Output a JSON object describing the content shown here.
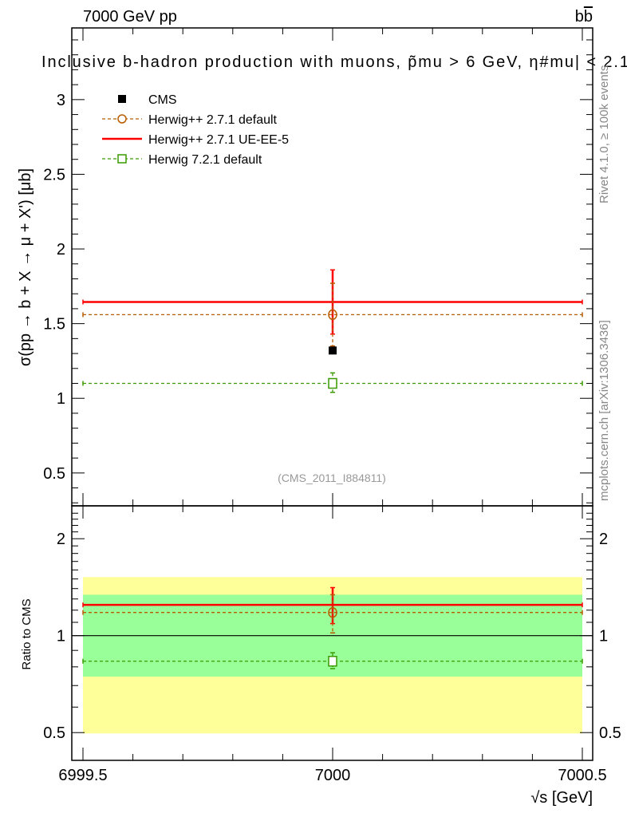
{
  "header": {
    "left": "7000 GeV pp",
    "right": "b",
    "right_bar": "b"
  },
  "side_labels": {
    "rivet": "Rivet 4.1.0, ≥ 100k events",
    "mcplots": "mcplots.cern.ch [arXiv:1306.3436]"
  },
  "chart_data": [
    {
      "type": "scatter",
      "title": "Inclusive b-hadron production with muons, p̃mu > 6 GeV, |η#mu| < 2.1",
      "title_text": "Inclusive b-hadron production with muons, p̃mu > 6 GeV, η#mu| < 2.1",
      "ylabel": "σ(pp → b + X → μ + X') [μb]",
      "ylim": [
        0.28,
        3.48
      ],
      "xlim": [
        6999.5,
        7000.5
      ],
      "yticks": [
        "0.5",
        "1",
        "1.5",
        "2",
        "2.5",
        "3"
      ],
      "yticks_values": [
        0.5,
        1,
        1.5,
        2,
        2.5,
        3
      ],
      "annotation": "(CMS_2011_I884811)",
      "legend_position": "top-left",
      "series": [
        {
          "name": "CMS",
          "color": "#000000",
          "marker": "filled-square",
          "x": 7000,
          "y": 1.32,
          "err_lo": 0,
          "err_hi": 0,
          "line": "none"
        },
        {
          "name": "Herwig++ 2.7.1 default",
          "color": "#b85c00",
          "marker": "open-circle",
          "x": 7000,
          "y": 1.56,
          "err_lo": 1.35,
          "err_hi": 1.77,
          "line": "dashed"
        },
        {
          "name": "Herwig++ 2.7.1 UE-EE-5",
          "color": "#ff0000",
          "marker": "none",
          "x": 7000,
          "y": 1.645,
          "err_lo": 1.43,
          "err_hi": 1.86,
          "line": "solid"
        },
        {
          "name": "Herwig 7.2.1 default",
          "color": "#3a9a00",
          "marker": "open-square",
          "x": 7000,
          "y": 1.1,
          "err_lo": 1.04,
          "err_hi": 1.17,
          "line": "dashed"
        }
      ]
    },
    {
      "type": "scatter",
      "ylabel": "Ratio to CMS",
      "xlabel": "√s [GeV]",
      "yscale": "log",
      "ylim": [
        0.41,
        2.53
      ],
      "yticks": [
        "0.5",
        "1",
        "2"
      ],
      "yticks_values": [
        0.5,
        1,
        2
      ],
      "xticks": [
        "6999.5",
        "7000",
        "7000.5"
      ],
      "xticks_values": [
        6999.5,
        7000,
        7000.5
      ],
      "bands": [
        {
          "name": "2-sigma",
          "color": "#ffff99",
          "lo": 0.497,
          "hi": 1.52
        },
        {
          "name": "1-sigma",
          "color": "#99ff99",
          "lo": 0.746,
          "hi": 1.34
        }
      ],
      "series": [
        {
          "name": "Herwig++ 2.7.1 default",
          "color": "#b85c00",
          "y": 1.18,
          "err_lo": 1.02,
          "err_hi": 1.34,
          "line": "dashed",
          "marker": "open-circle"
        },
        {
          "name": "Herwig++ 2.7.1 UE-EE-5",
          "color": "#ff0000",
          "y": 1.246,
          "err_lo": 1.09,
          "err_hi": 1.41,
          "line": "solid",
          "marker": "none"
        },
        {
          "name": "Herwig 7.2.1 default",
          "color": "#3a9a00",
          "y": 0.833,
          "err_lo": 0.79,
          "err_hi": 0.885,
          "line": "dashed",
          "marker": "open-square"
        }
      ]
    }
  ]
}
